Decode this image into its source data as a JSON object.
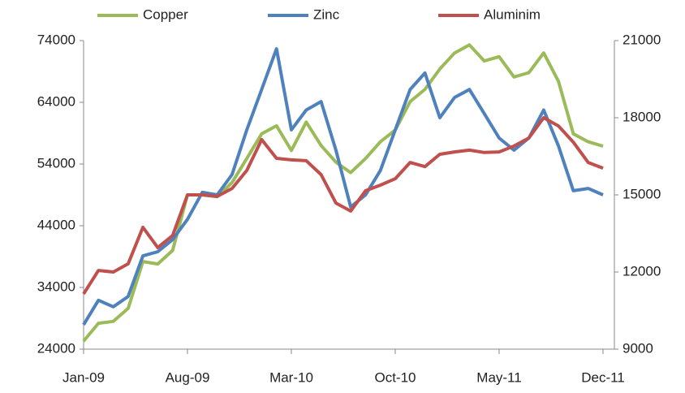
{
  "chart_data": {
    "type": "line",
    "categories": [
      "Jan-09",
      null,
      null,
      null,
      null,
      null,
      null,
      "Aug-09",
      null,
      null,
      null,
      null,
      null,
      null,
      "Mar-10",
      null,
      null,
      null,
      null,
      null,
      null,
      "Oct-10",
      null,
      null,
      null,
      null,
      null,
      null,
      "May-11",
      null,
      null,
      null,
      null,
      null,
      null,
      "Dec-11"
    ],
    "series": [
      {
        "name": "Copper",
        "color": "#9bbb59",
        "axis": "y",
        "values": [
          25300,
          28200,
          28500,
          30600,
          38200,
          37800,
          40000,
          49000,
          49000,
          48700,
          51000,
          54900,
          58900,
          60200,
          56200,
          60800,
          57000,
          54300,
          52600,
          54900,
          57600,
          59500,
          64100,
          66100,
          69400,
          72000,
          73300,
          70700,
          71400,
          68100,
          68800,
          72000,
          67400,
          58900,
          57600,
          56900
        ]
      },
      {
        "name": "Zinc",
        "color": "#4f81bd",
        "axis": "y2",
        "values": [
          9950,
          10900,
          10650,
          11050,
          12630,
          12790,
          13260,
          14050,
          15100,
          15000,
          15790,
          17530,
          19100,
          20680,
          17530,
          18300,
          18630,
          16740,
          14530,
          15000,
          15950,
          17530,
          19100,
          19740,
          18000,
          18790,
          19100,
          18160,
          17210,
          16740,
          17210,
          18300,
          16900,
          15160,
          15250,
          15000
        ]
      },
      {
        "name": "Aluminim",
        "color": "#c0504d",
        "axis": "y2",
        "values": [
          11150,
          12060,
          12000,
          12320,
          13740,
          12950,
          13420,
          15000,
          15000,
          14940,
          15250,
          15950,
          17150,
          16420,
          16360,
          16330,
          15790,
          14680,
          14370,
          15160,
          15380,
          15630,
          16260,
          16100,
          16580,
          16670,
          16740,
          16650,
          16670,
          16900,
          17210,
          18000,
          17680,
          17050,
          16260,
          16040
        ]
      }
    ],
    "ylim": [
      24000,
      74000
    ],
    "yticks": [
      24000,
      34000,
      44000,
      54000,
      64000,
      74000
    ],
    "y2lim": [
      9000,
      21000
    ],
    "y2ticks": [
      9000,
      12000,
      15000,
      18000,
      21000
    ],
    "legend": "top",
    "grid": false
  }
}
